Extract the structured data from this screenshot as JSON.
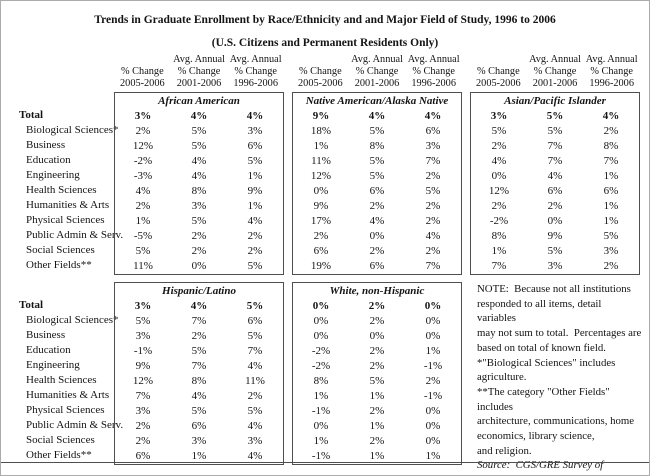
{
  "title": "Trends in Graduate Enrollment by Race/Ethnicity and and Major Field of Study, 1996 to 2006",
  "subtitle": "(U.S. Citizens and Permanent Residents Only)",
  "column_headers": [
    {
      "lines": [
        "",
        "% Change",
        "2005-2006"
      ]
    },
    {
      "lines": [
        "Avg. Annual",
        "% Change",
        "2001-2006"
      ]
    },
    {
      "lines": [
        "Avg. Annual",
        "% Change",
        "1996-2006"
      ]
    }
  ],
  "row_labels": [
    "Total",
    "Biological Sciences*",
    "Business",
    "Education",
    "Engineering",
    "Health Sciences",
    "Humanities & Arts",
    "Physical Sciences",
    "Public Admin & Serv.",
    "Social Sciences",
    "Other Fields**"
  ],
  "sections": [
    {
      "groups": [
        {
          "name": "African American",
          "values": [
            [
              "3%",
              "4%",
              "4%"
            ],
            [
              "2%",
              "5%",
              "3%"
            ],
            [
              "12%",
              "5%",
              "6%"
            ],
            [
              "-2%",
              "4%",
              "5%"
            ],
            [
              "-3%",
              "4%",
              "1%"
            ],
            [
              "4%",
              "8%",
              "9%"
            ],
            [
              "2%",
              "3%",
              "1%"
            ],
            [
              "1%",
              "5%",
              "4%"
            ],
            [
              "-5%",
              "2%",
              "2%"
            ],
            [
              "5%",
              "2%",
              "2%"
            ],
            [
              "11%",
              "0%",
              "5%"
            ]
          ]
        },
        {
          "name": "Native American/Alaska Native",
          "values": [
            [
              "9%",
              "4%",
              "4%"
            ],
            [
              "18%",
              "5%",
              "6%"
            ],
            [
              "1%",
              "8%",
              "3%"
            ],
            [
              "11%",
              "5%",
              "7%"
            ],
            [
              "12%",
              "5%",
              "2%"
            ],
            [
              "0%",
              "6%",
              "5%"
            ],
            [
              "9%",
              "2%",
              "2%"
            ],
            [
              "17%",
              "4%",
              "2%"
            ],
            [
              "2%",
              "0%",
              "4%"
            ],
            [
              "6%",
              "2%",
              "2%"
            ],
            [
              "19%",
              "6%",
              "7%"
            ]
          ]
        },
        {
          "name": "Asian/Pacific Islander",
          "values": [
            [
              "3%",
              "5%",
              "4%"
            ],
            [
              "5%",
              "5%",
              "2%"
            ],
            [
              "2%",
              "7%",
              "8%"
            ],
            [
              "4%",
              "7%",
              "7%"
            ],
            [
              "0%",
              "4%",
              "1%"
            ],
            [
              "12%",
              "6%",
              "6%"
            ],
            [
              "2%",
              "2%",
              "1%"
            ],
            [
              "-2%",
              "0%",
              "1%"
            ],
            [
              "8%",
              "9%",
              "5%"
            ],
            [
              "1%",
              "5%",
              "3%"
            ],
            [
              "7%",
              "3%",
              "2%"
            ]
          ]
        }
      ]
    },
    {
      "groups": [
        {
          "name": "Hispanic/Latino",
          "values": [
            [
              "3%",
              "4%",
              "5%"
            ],
            [
              "5%",
              "7%",
              "6%"
            ],
            [
              "3%",
              "2%",
              "5%"
            ],
            [
              "-1%",
              "5%",
              "7%"
            ],
            [
              "9%",
              "7%",
              "4%"
            ],
            [
              "12%",
              "8%",
              "11%"
            ],
            [
              "7%",
              "4%",
              "2%"
            ],
            [
              "3%",
              "5%",
              "5%"
            ],
            [
              "2%",
              "6%",
              "4%"
            ],
            [
              "2%",
              "3%",
              "3%"
            ],
            [
              "6%",
              "1%",
              "4%"
            ]
          ]
        },
        {
          "name": "White, non-Hispanic",
          "values": [
            [
              "0%",
              "2%",
              "0%"
            ],
            [
              "0%",
              "2%",
              "0%"
            ],
            [
              "0%",
              "0%",
              "0%"
            ],
            [
              "-2%",
              "2%",
              "1%"
            ],
            [
              "-2%",
              "2%",
              "-1%"
            ],
            [
              "8%",
              "5%",
              "2%"
            ],
            [
              "1%",
              "1%",
              "-1%"
            ],
            [
              "-1%",
              "2%",
              "0%"
            ],
            [
              "0%",
              "1%",
              "0%"
            ],
            [
              "1%",
              "2%",
              "0%"
            ],
            [
              "-1%",
              "1%",
              "1%"
            ]
          ]
        }
      ]
    }
  ],
  "note_lines": [
    "NOTE:  Because not all institutions",
    "responded to all items, detail variables",
    "may not sum to total.  Percentages are",
    "based on total of known field.",
    "*\"Biological Sciences\" includes",
    "agriculture.",
    "**The category \"Other Fields\" includes",
    "architecture, communications, home",
    "economics, library science,",
    "and religion."
  ],
  "source_lines": [
    "Source:  CGS/GRE Survey of",
    "Graduate Enrollment."
  ]
}
